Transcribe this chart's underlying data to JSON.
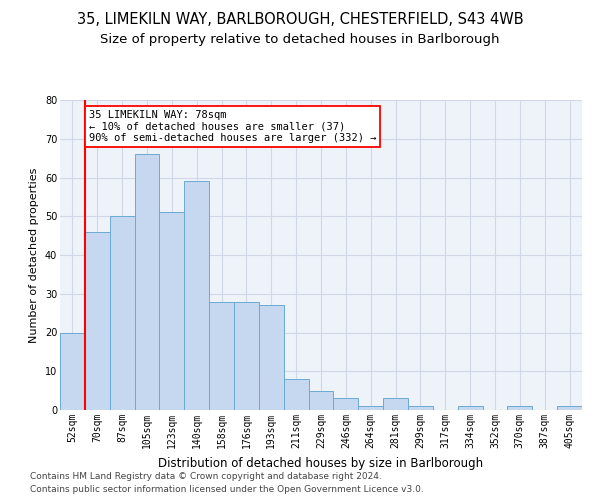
{
  "title1": "35, LIMEKILN WAY, BARLBOROUGH, CHESTERFIELD, S43 4WB",
  "title2": "Size of property relative to detached houses in Barlborough",
  "xlabel": "Distribution of detached houses by size in Barlborough",
  "ylabel": "Number of detached properties",
  "categories": [
    "52sqm",
    "70sqm",
    "87sqm",
    "105sqm",
    "123sqm",
    "140sqm",
    "158sqm",
    "176sqm",
    "193sqm",
    "211sqm",
    "229sqm",
    "246sqm",
    "264sqm",
    "281sqm",
    "299sqm",
    "317sqm",
    "334sqm",
    "352sqm",
    "370sqm",
    "387sqm",
    "405sqm"
  ],
  "values": [
    20,
    46,
    50,
    66,
    51,
    59,
    28,
    28,
    27,
    8,
    5,
    3,
    1,
    3,
    1,
    0,
    1,
    0,
    1,
    0,
    1
  ],
  "bar_color": "#c5d8f0",
  "bar_edge_color": "#6aaad4",
  "red_line_index": 1,
  "annotation_line1": "35 LIMEKILN WAY: 78sqm",
  "annotation_line2": "← 10% of detached houses are smaller (37)",
  "annotation_line3": "90% of semi-detached houses are larger (332) →",
  "annotation_box_color": "white",
  "annotation_box_edge": "red",
  "ylim": [
    0,
    80
  ],
  "yticks": [
    0,
    10,
    20,
    30,
    40,
    50,
    60,
    70,
    80
  ],
  "grid_color": "#d0d8e8",
  "background_color": "#eef2f9",
  "footer1": "Contains HM Land Registry data © Crown copyright and database right 2024.",
  "footer2": "Contains public sector information licensed under the Open Government Licence v3.0.",
  "title1_fontsize": 10.5,
  "title2_fontsize": 9.5,
  "xlabel_fontsize": 8.5,
  "ylabel_fontsize": 8,
  "tick_fontsize": 7,
  "annotation_fontsize": 7.5,
  "footer_fontsize": 6.5
}
